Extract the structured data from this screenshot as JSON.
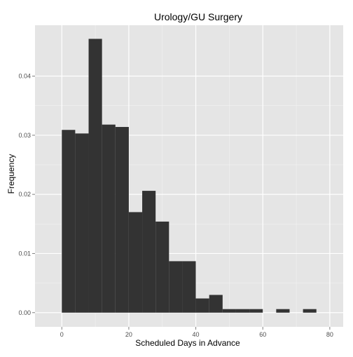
{
  "chart_data": {
    "type": "bar",
    "title": "Urology/GU Surgery",
    "xlabel": "Scheduled Days in Advance",
    "ylabel": "Frequency",
    "xlim": [
      -8,
      84
    ],
    "ylim": [
      -0.0024,
      0.0486
    ],
    "x_ticks": [
      0,
      20,
      40,
      60,
      80
    ],
    "y_ticks": [
      0.0,
      0.01,
      0.02,
      0.03,
      0.04
    ],
    "x_tick_labels": [
      "0",
      "20",
      "40",
      "60",
      "80"
    ],
    "y_tick_labels": [
      "0.00",
      "0.01",
      "0.02",
      "0.03",
      "0.04"
    ],
    "bin_width": 4,
    "bins": [
      {
        "x0": 0,
        "x1": 4,
        "value": 0.0309
      },
      {
        "x0": 4,
        "x1": 8,
        "value": 0.0303
      },
      {
        "x0": 8,
        "x1": 12,
        "value": 0.0463
      },
      {
        "x0": 12,
        "x1": 16,
        "value": 0.0318
      },
      {
        "x0": 16,
        "x1": 20,
        "value": 0.0314
      },
      {
        "x0": 20,
        "x1": 24,
        "value": 0.017
      },
      {
        "x0": 24,
        "x1": 28,
        "value": 0.0206
      },
      {
        "x0": 28,
        "x1": 32,
        "value": 0.0154
      },
      {
        "x0": 32,
        "x1": 36,
        "value": 0.0087
      },
      {
        "x0": 36,
        "x1": 40,
        "value": 0.0087
      },
      {
        "x0": 40,
        "x1": 44,
        "value": 0.0024
      },
      {
        "x0": 44,
        "x1": 48,
        "value": 0.003
      },
      {
        "x0": 48,
        "x1": 52,
        "value": 0.0006
      },
      {
        "x0": 52,
        "x1": 56,
        "value": 0.0006
      },
      {
        "x0": 56,
        "x1": 60,
        "value": 0.0006
      },
      {
        "x0": 60,
        "x1": 64,
        "value": 0.0
      },
      {
        "x0": 64,
        "x1": 68,
        "value": 0.0006
      },
      {
        "x0": 68,
        "x1": 72,
        "value": 0.0
      },
      {
        "x0": 72,
        "x1": 76,
        "value": 0.0006
      }
    ],
    "grid": true,
    "legend": "none",
    "colors": {
      "panel": "#e5e5e5",
      "grid_major": "#ffffff",
      "grid_minor": "#f2f2f2",
      "bar": "#333333",
      "tick": "#7f7f7f",
      "tick_text": "#4d4d4d"
    }
  }
}
